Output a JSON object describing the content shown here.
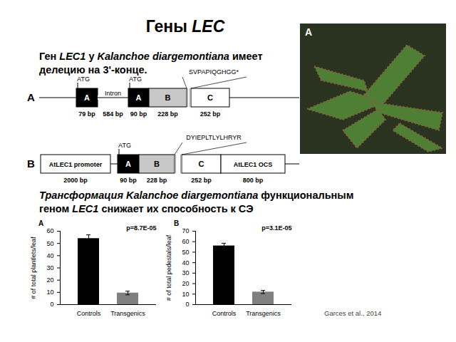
{
  "slide": {
    "title": [
      [
        {
          "text": "Гены "
        },
        {
          "text": "LEC",
          "italic": true
        }
      ]
    ],
    "intro": [
      [
        {
          "text": "Ген "
        },
        {
          "text": "LEC1",
          "italic": true
        },
        {
          "text": " у "
        },
        {
          "text": "Kalanchoe diargemontiana",
          "italic": true
        },
        {
          "text": " имеет"
        }
      ],
      [
        {
          "text": "делецию на 3'-конце."
        }
      ]
    ],
    "diagram_A": {
      "panel": "A",
      "atg": "ATG",
      "peptide": "SVPAPIQGHGG*",
      "boxes": [
        {
          "text": "A",
          "size": "79 bp",
          "color": "#000000"
        },
        {
          "text": "Intron",
          "size": "584 bp",
          "color": null
        },
        {
          "text": "A",
          "size": "90 bp",
          "color": "#000000"
        },
        {
          "text": "B",
          "size": "228 bp",
          "color": "#c8c8c8"
        },
        {
          "text": "C",
          "size": "252 bp",
          "color": "#ffffff"
        }
      ]
    },
    "diagram_B": {
      "panel": "B",
      "atg": "ATG",
      "peptide": "DYIEPLTLYLHRYR",
      "boxes": [
        {
          "text": "AtLEC1 promoter",
          "size": "2000 bp",
          "color": "#ffffff"
        },
        {
          "text": "A",
          "size": "90 bp",
          "color": "#000000"
        },
        {
          "text": "B",
          "size": "228 bp",
          "color": "#c8c8c8"
        },
        {
          "text": "C",
          "size": "252 bp",
          "color": "#ffffff"
        },
        {
          "text": "AtLEC1 OCS",
          "size": "800 bp",
          "color": "#ffffff"
        }
      ]
    },
    "photo": {
      "panel": "A"
    },
    "transformation": [
      [
        {
          "text": "Трансформация",
          "italic": true
        },
        {
          "text": " "
        },
        {
          "text": "Kalanchoe diargemontiana",
          "italic": true
        },
        {
          "text": " функциональным"
        }
      ],
      [
        {
          "text": "геном "
        },
        {
          "text": "LEC1",
          "italic": true
        },
        {
          "text": " снижает их способность к СЭ"
        }
      ]
    ],
    "caption": "Garces et al., 2014"
  },
  "chart_data": [
    {
      "type": "bar",
      "panel": "A",
      "annotation": "p=8.7E-05",
      "y_label": "# of total plantlets/leaf",
      "categories": [
        "Controls",
        "Transgenics"
      ],
      "values": [
        54,
        9.5
      ],
      "errors": [
        3,
        1.5
      ],
      "colors": [
        "#000000",
        "#808080"
      ],
      "ylim": [
        0,
        60
      ],
      "yticks": [
        0,
        10,
        20,
        30,
        40,
        50,
        60
      ]
    },
    {
      "type": "bar",
      "panel": "B",
      "annotation": "p=3.1E-05",
      "y_label": "# of total pedestals/leaf",
      "categories": [
        "Controls",
        "Transgenics"
      ],
      "values": [
        56,
        12
      ],
      "errors": [
        2.5,
        1.5
      ],
      "colors": [
        "#000000",
        "#808080"
      ],
      "ylim": [
        0,
        70
      ],
      "yticks": [
        0,
        10,
        20,
        30,
        40,
        50,
        60,
        70
      ]
    }
  ]
}
